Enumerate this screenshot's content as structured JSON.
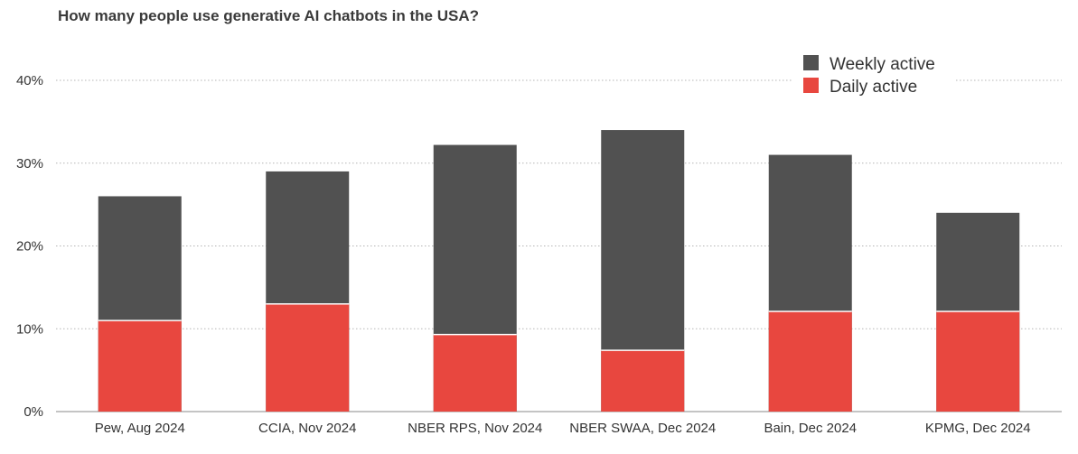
{
  "chart_data": {
    "type": "bar",
    "stacked": true,
    "title": "How many people use generative AI chatbots in the USA?",
    "xlabel": "",
    "ylabel": "",
    "ylim": [
      0,
      40
    ],
    "yticks": [
      "0%",
      "10%",
      "20%",
      "30%",
      "40%"
    ],
    "grid": true,
    "legend_position": "top-right",
    "categories": [
      "Pew, Aug 2024",
      "CCIA, Nov 2024",
      "NBER RPS, Nov 2024",
      "NBER SWAA, Dec 2024",
      "Bain, Dec 2024",
      "KPMG, Dec 2024"
    ],
    "series": [
      {
        "name": "Daily active",
        "color": "#e8473f",
        "values": [
          11,
          13,
          9.3,
          7.4,
          12.1,
          12.1
        ]
      },
      {
        "name": "Weekly active",
        "color": "#515151",
        "values": [
          26,
          29,
          32.2,
          34,
          31,
          24
        ]
      }
    ]
  }
}
